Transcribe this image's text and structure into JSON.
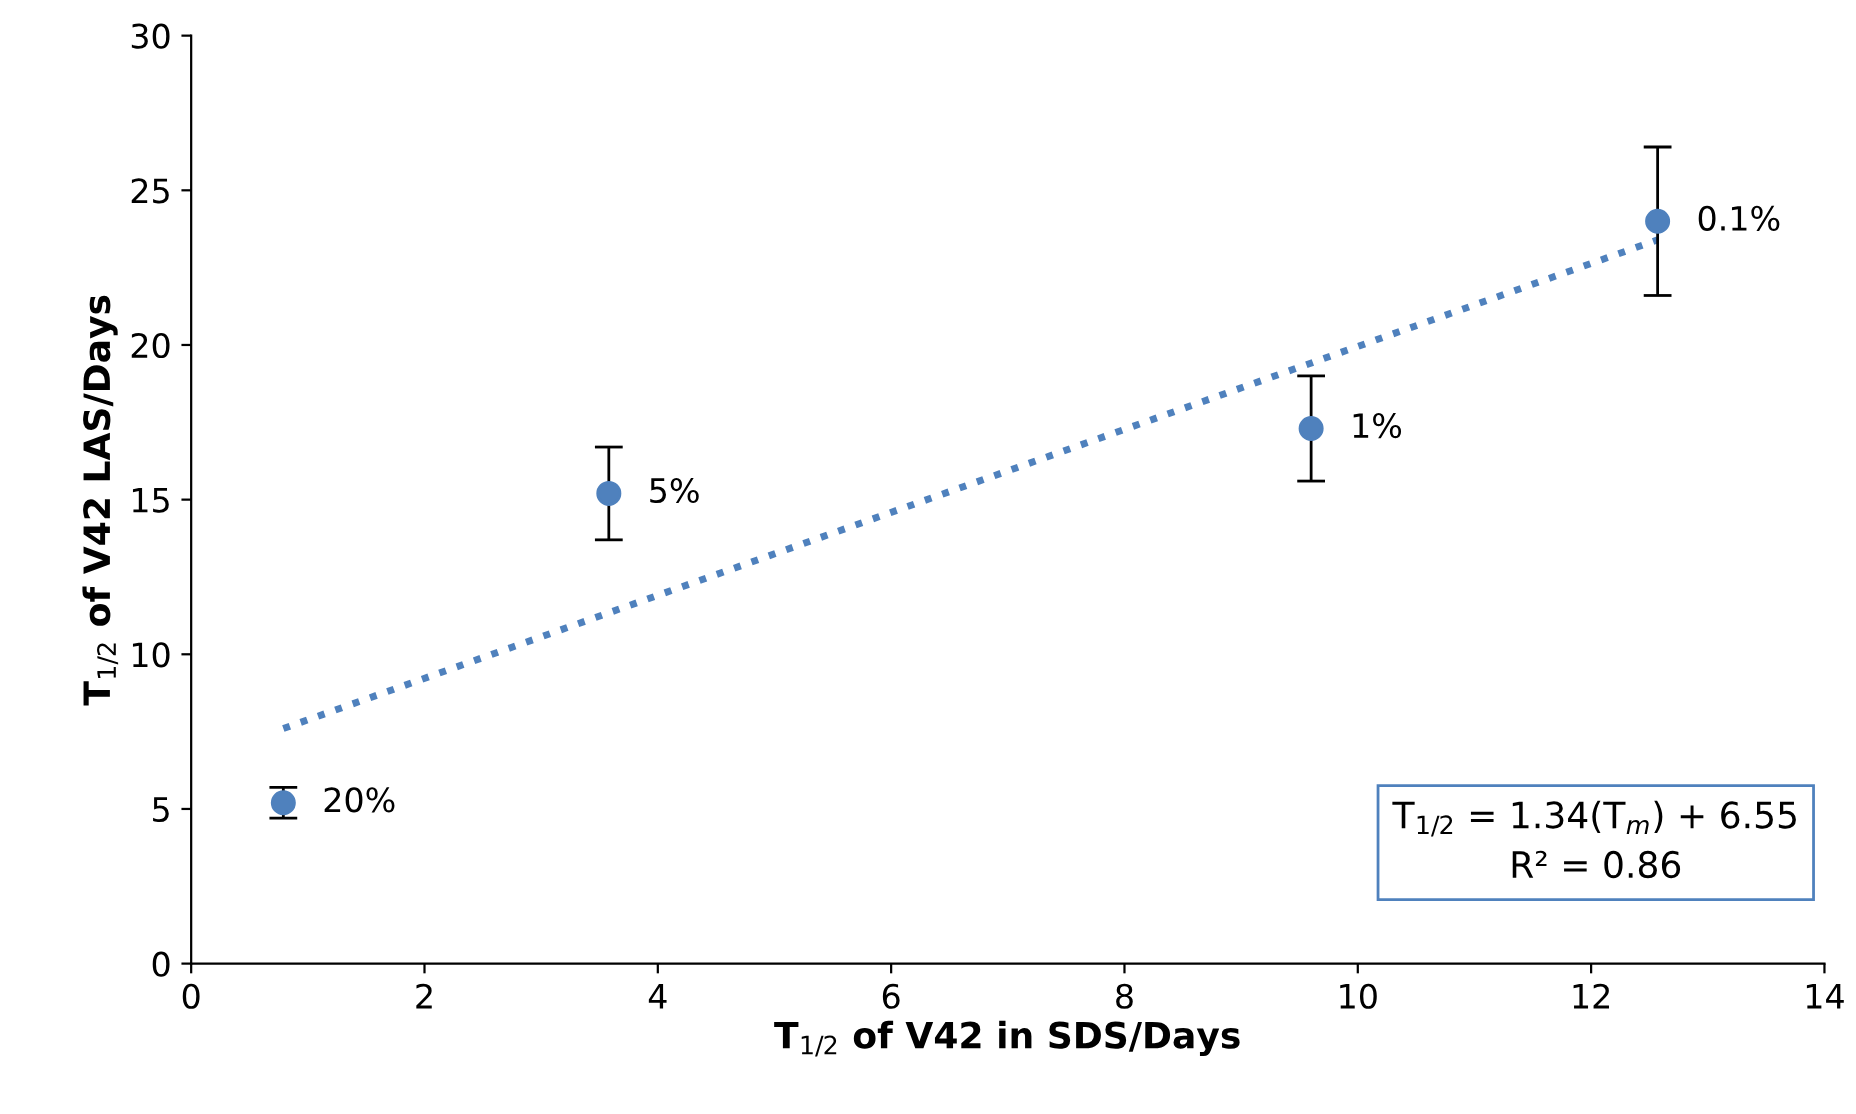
{
  "chart_data": {
    "type": "scatter",
    "xlabel": "T$_{1/2}$ of V42 in SDS/Days",
    "ylabel": "T$_{1/2}$ of V42 LAS/Days",
    "xlim": [
      0,
      14
    ],
    "xticks": [
      0,
      2,
      4,
      6,
      8,
      10,
      12,
      14
    ],
    "ylim": [
      0,
      30
    ],
    "yticks": [
      0,
      5,
      10,
      15,
      20,
      25,
      30
    ],
    "grid": false,
    "series": [
      {
        "color": "#4f81bd",
        "marker": "circle",
        "x": [
          0.79,
          3.58,
          9.6,
          12.57
        ],
        "values": [
          5.2,
          15.2,
          17.3,
          24.0
        ],
        "errors": [
          0.5,
          1.5,
          1.7,
          2.4
        ]
      },
      {
        "type": "line",
        "color": "#4f81bd",
        "line_style": "dotted",
        "x": [
          0.79,
          12.57
        ],
        "values": [
          7.6,
          23.4
        ]
      }
    ],
    "annotations": [
      {
        "text": "20%",
        "x": 0.79,
        "y": 5.2
      },
      {
        "text": "5%",
        "x": 3.58,
        "y": 15.2
      },
      {
        "text": "1%",
        "x": 9.6,
        "y": 17.3
      },
      {
        "text": "0.1%",
        "x": 12.57,
        "y": 24.0
      },
      "T$_{1/2}$ = 1.34(T$_{m}$) + 6.55\nR² = 0.86"
    ]
  }
}
